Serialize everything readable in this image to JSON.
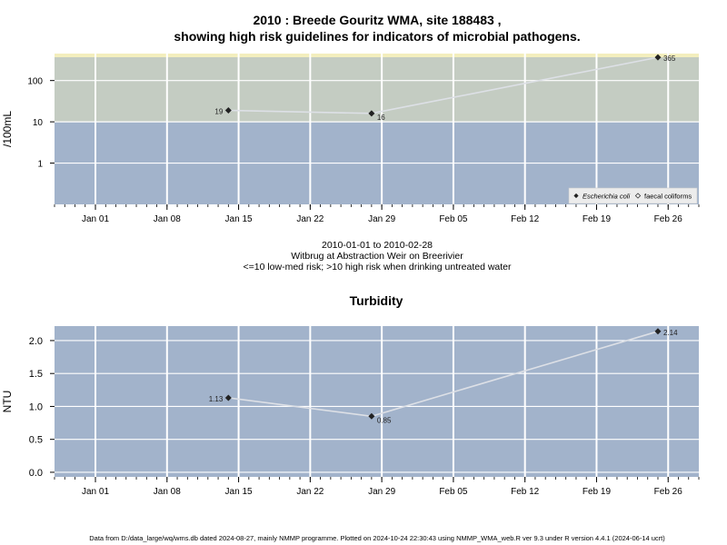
{
  "header": {
    "title_line1": "2010 : Breede Gouritz WMA, site 188483 ,",
    "title_line2": "showing high risk guidelines for indicators of microbial pathogens."
  },
  "caption": {
    "date_range": "2010-01-01 to 2010-02-28",
    "site_name": "Witbrug at Abstraction Weir on Breerivier",
    "risk_note": "<=10 low-med risk; >10 high risk when drinking untreated water"
  },
  "footer": {
    "text": "Data from D:/data_large/wq/wms.db dated 2024-08-27, mainly NMMP programme. Plotted on 2024-10-24 22:30:43 using NMMP_WMA_web.R ver 9.3 under R version 4.4.1 (2024-06-14 ucrt)"
  },
  "colors": {
    "panel_background": "#a2b3cb",
    "high_risk_zone": "#c4ccc2",
    "top_band": "#f3eebd",
    "grid": "#ffffff",
    "series_line": "#dde0e6",
    "marker": "#222222"
  },
  "chart_data": [
    {
      "type": "line",
      "title": "",
      "xlabel": "",
      "ylabel": "/100mL",
      "y_scale": "log",
      "ylim": [
        0.1,
        450
      ],
      "yticks": [
        1,
        10,
        100
      ],
      "ytick_labels": [
        "1",
        "10",
        "100"
      ],
      "xlim": [
        "2009-12-28",
        "2010-03-01"
      ],
      "xticks": [
        "2010-01-01",
        "2010-01-08",
        "2010-01-15",
        "2010-01-22",
        "2010-01-29",
        "2010-02-05",
        "2010-02-12",
        "2010-02-19",
        "2010-02-26"
      ],
      "xtick_labels": [
        "Jan 01",
        "Jan 08",
        "Jan 15",
        "Jan 22",
        "Jan 29",
        "Feb 05",
        "Feb 12",
        "Feb 19",
        "Feb 26"
      ],
      "grid": true,
      "risk_threshold": 10,
      "legend_position": "bottom-right",
      "legend": [
        {
          "label": "Escherichia coli",
          "marker": "filled-diamond",
          "italic": true
        },
        {
          "label": "faecal coliforms",
          "marker": "open-diamond",
          "italic": false
        }
      ],
      "series": [
        {
          "name": "Escherichia coli",
          "x": [
            "2010-01-14",
            "2010-01-28",
            "2010-02-25"
          ],
          "values": [
            19,
            16,
            365
          ],
          "labels": [
            "19",
            "16",
            "365"
          ]
        }
      ]
    },
    {
      "type": "line",
      "title": "Turbidity",
      "xlabel": "",
      "ylabel": "NTU",
      "y_scale": "linear",
      "ylim": [
        -0.07,
        2.22
      ],
      "yticks": [
        0.0,
        0.5,
        1.0,
        1.5,
        2.0
      ],
      "ytick_labels": [
        "0.0",
        "0.5",
        "1.0",
        "1.5",
        "2.0"
      ],
      "xlim": [
        "2009-12-28",
        "2010-03-01"
      ],
      "xticks": [
        "2010-01-01",
        "2010-01-08",
        "2010-01-15",
        "2010-01-22",
        "2010-01-29",
        "2010-02-05",
        "2010-02-12",
        "2010-02-19",
        "2010-02-26"
      ],
      "xtick_labels": [
        "Jan 01",
        "Jan 08",
        "Jan 15",
        "Jan 22",
        "Jan 29",
        "Feb 05",
        "Feb 12",
        "Feb 19",
        "Feb 26"
      ],
      "grid": true,
      "series": [
        {
          "x": [
            "2010-01-14",
            "2010-01-28",
            "2010-02-25"
          ],
          "values": [
            1.13,
            0.85,
            2.14
          ],
          "labels": [
            "1.13",
            "0.85",
            "2.14"
          ]
        }
      ]
    }
  ]
}
